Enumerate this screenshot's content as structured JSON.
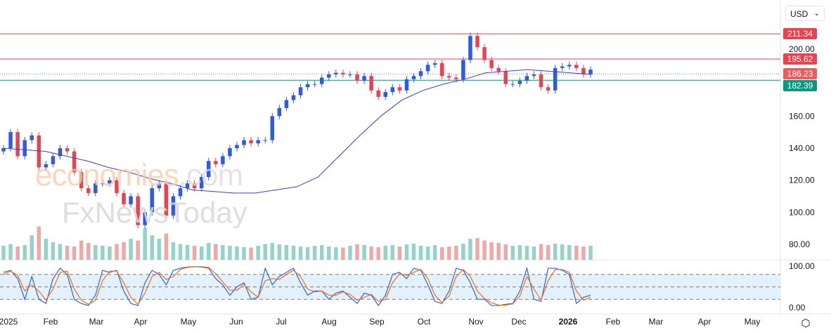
{
  "currency_selector": {
    "value": "USD"
  },
  "watermark": {
    "line1_a": "economies",
    "line1_b": ".com",
    "line2": "FxNewsToday"
  },
  "colors": {
    "up": "#2f5be0",
    "down": "#e8434f",
    "vol_up": "#92d4c8",
    "vol_down": "#f2a7a7",
    "ma": "#3d3dd8",
    "stoch_k": "#2962ff",
    "stoch_d": "#ff6d00",
    "band": "#e3f1fd",
    "line_red": "#e8434f",
    "line_green": "#089981",
    "last_price": "#ef5b5b"
  },
  "chart_data": {
    "type": "candlestick",
    "price_axis": {
      "ticks": [
        "200.00",
        "160.00",
        "140.00",
        "120.00",
        "100.00",
        "80.00"
      ],
      "tick_values": [
        200,
        160,
        140,
        120,
        100,
        80
      ],
      "range": [
        80,
        211.34
      ]
    },
    "price_levels": [
      {
        "value": 211.34,
        "label": "211.34",
        "style": "solid",
        "color": "#e8434f"
      },
      {
        "value": 195.62,
        "label": "195.62",
        "style": "solid",
        "color": "#e8434f"
      },
      {
        "value": 186.23,
        "label": "186.23",
        "style": "dotted",
        "color": "#ef5b5b"
      },
      {
        "value": 182.39,
        "label": "182.39",
        "style": "solid",
        "color": "#089981"
      }
    ],
    "x_axis": {
      "labels": [
        "2025",
        "Feb",
        "Mar",
        "Apr",
        "May",
        "Jun",
        "Jul",
        "Aug",
        "Sep",
        "Oct",
        "Nov",
        "Dec",
        "2026",
        "Feb",
        "Mar",
        "Apr",
        "May"
      ],
      "bold": [
        "2026"
      ]
    },
    "close": [
      140,
      150,
      135,
      145,
      148,
      128,
      130,
      135,
      140,
      138,
      125,
      115,
      112,
      118,
      118,
      120,
      112,
      105,
      110,
      92,
      100,
      115,
      118,
      98,
      110,
      115,
      118,
      115,
      122,
      132,
      130,
      135,
      140,
      142,
      145,
      143,
      145,
      145,
      160,
      165,
      170,
      173,
      178,
      180,
      180,
      184,
      186,
      187,
      186,
      186,
      182,
      185,
      176,
      172,
      175,
      178,
      176,
      183,
      185,
      188,
      192,
      193,
      185,
      184,
      183,
      195,
      210,
      203,
      195,
      190,
      188,
      180,
      180,
      182,
      185,
      186,
      178,
      176,
      190,
      191,
      192,
      190,
      186,
      189
    ],
    "moving_average": [
      140,
      139,
      138,
      135,
      132,
      128,
      125,
      121,
      118,
      114,
      113,
      112,
      112,
      114,
      116,
      122,
      135,
      148,
      160,
      170,
      176,
      180,
      183,
      187,
      188,
      189,
      188,
      187,
      186
    ],
    "volume": [
      40,
      45,
      38,
      42,
      70,
      95,
      60,
      50,
      45,
      40,
      38,
      55,
      48,
      42,
      40,
      38,
      45,
      50,
      60,
      55,
      90,
      70,
      60,
      75,
      50,
      45,
      42,
      40,
      38,
      48,
      45,
      42,
      40,
      38,
      36,
      35,
      40,
      45,
      48,
      44,
      42,
      40,
      38,
      36,
      40,
      42,
      38,
      36,
      35,
      40,
      44,
      42,
      38,
      36,
      40,
      42,
      38,
      44,
      46,
      40,
      38,
      42,
      36,
      38,
      40,
      46,
      60,
      62,
      55,
      50,
      48,
      44,
      40,
      42,
      40,
      38,
      45,
      42,
      46,
      44,
      42,
      40,
      38,
      40
    ],
    "stochastic": {
      "axis_ticks": [
        "100.00",
        "0.00"
      ],
      "levels": [
        80,
        50,
        20
      ],
      "k": [
        85,
        90,
        70,
        20,
        75,
        20,
        10,
        70,
        95,
        80,
        20,
        10,
        5,
        30,
        90,
        85,
        90,
        40,
        10,
        5,
        60,
        90,
        80,
        55,
        90,
        95,
        98,
        99,
        98,
        95,
        70,
        55,
        30,
        50,
        60,
        20,
        25,
        95,
        55,
        75,
        85,
        95,
        60,
        30,
        40,
        40,
        20,
        35,
        40,
        25,
        10,
        35,
        30,
        5,
        30,
        80,
        85,
        70,
        95,
        90,
        55,
        15,
        10,
        40,
        95,
        90,
        60,
        20,
        20,
        5,
        5,
        8,
        10,
        40,
        95,
        20,
        15,
        95,
        95,
        90,
        80,
        10,
        25,
        30
      ],
      "d": [
        80,
        88,
        78,
        40,
        55,
        40,
        18,
        45,
        85,
        88,
        45,
        18,
        8,
        18,
        65,
        88,
        88,
        60,
        25,
        8,
        35,
        75,
        85,
        68,
        75,
        92,
        97,
        99,
        99,
        97,
        82,
        62,
        42,
        42,
        56,
        38,
        25,
        65,
        70,
        68,
        80,
        90,
        75,
        45,
        38,
        40,
        30,
        30,
        38,
        32,
        18,
        25,
        32,
        15,
        20,
        60,
        82,
        78,
        85,
        92,
        70,
        30,
        12,
        28,
        75,
        92,
        75,
        40,
        22,
        12,
        6,
        6,
        9,
        28,
        75,
        45,
        18,
        65,
        92,
        92,
        85,
        40,
        18,
        25
      ]
    }
  }
}
